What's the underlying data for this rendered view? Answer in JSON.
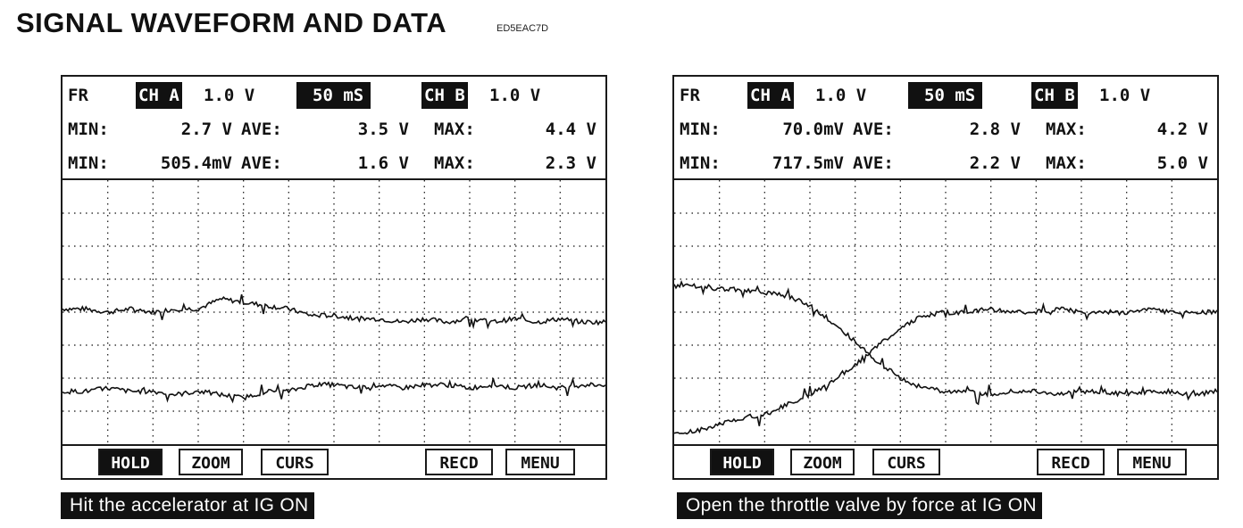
{
  "title": "SIGNAL WAVEFORM AND DATA",
  "doc_code": "ED5EAC7D",
  "colors": {
    "screen_background": "#ffffff",
    "trace": "#111111",
    "grid": "#111111",
    "inverse_label_background": "#111111",
    "inverse_label_text": "#ffffff"
  },
  "panels": [
    {
      "mode": "FR",
      "channel_a": {
        "label": "CH A",
        "scale": "1.0 V"
      },
      "timebase": "50 mS",
      "channel_b": {
        "label": "CH B",
        "scale": "1.0 V"
      },
      "stats_a": {
        "min_label": "MIN:",
        "min": "2.7 V",
        "ave_label": "AVE:",
        "ave": "3.5 V",
        "max_label": "MAX:",
        "max": "4.4 V"
      },
      "stats_b": {
        "min_label": "MIN:",
        "min": "505.4mV",
        "ave_label": "AVE:",
        "ave": "1.6 V",
        "max_label": "MAX:",
        "max": "2.3 V"
      },
      "softkeys": {
        "hold": "HOLD",
        "zoom": "ZOOM",
        "curs": "CURS",
        "recd": "RECD",
        "menu": "MENU",
        "active": "hold"
      },
      "caption": "Hit the accelerator at IG ON",
      "waveform": {
        "grid_divisions": {
          "x": 12,
          "y": 8
        },
        "trace_a": [
          4.1,
          4.1,
          4.0,
          4.1,
          4.0,
          4.1,
          4.1,
          4.4,
          4.3,
          4.2,
          4.1,
          3.9,
          3.9,
          3.8,
          3.8,
          3.7,
          3.8,
          3.7,
          3.8,
          3.7,
          3.8,
          3.7,
          3.8,
          3.7,
          3.7
        ],
        "trace_b": [
          1.6,
          1.6,
          1.7,
          1.6,
          1.6,
          1.5,
          1.6,
          1.5,
          1.4,
          1.6,
          1.6,
          1.8,
          1.8,
          1.7,
          1.8,
          1.7,
          1.8,
          1.8,
          1.7,
          1.8,
          1.7,
          1.8,
          1.7,
          1.8,
          1.8
        ]
      }
    },
    {
      "mode": "FR",
      "channel_a": {
        "label": "CH A",
        "scale": "1.0 V"
      },
      "timebase": "50 mS",
      "channel_b": {
        "label": "CH B",
        "scale": "1.0 V"
      },
      "stats_a": {
        "min_label": "MIN:",
        "min": "70.0mV",
        "ave_label": "AVE:",
        "ave": "2.8 V",
        "max_label": "MAX:",
        "max": "4.2 V"
      },
      "stats_b": {
        "min_label": "MIN:",
        "min": "717.5mV",
        "ave_label": "AVE:",
        "ave": "2.2 V",
        "max_label": "MAX:",
        "max": "5.0 V"
      },
      "softkeys": {
        "hold": "HOLD",
        "zoom": "ZOOM",
        "curs": "CURS",
        "recd": "RECD",
        "menu": "MENU",
        "active": "hold"
      },
      "caption": "Open the throttle valve by force at IG ON",
      "waveform": {
        "grid_divisions": {
          "x": 12,
          "y": 8
        },
        "trace_a": [
          0.3,
          0.4,
          0.6,
          0.8,
          0.9,
          1.2,
          1.5,
          1.9,
          2.4,
          3.0,
          3.5,
          3.9,
          4.0,
          4.0,
          4.1,
          4.0,
          4.0,
          4.1,
          4.0,
          4.0,
          4.0,
          4.1,
          4.0,
          4.0,
          4.0
        ],
        "trace_b": [
          4.8,
          4.8,
          4.7,
          4.7,
          4.6,
          4.5,
          4.2,
          3.7,
          3.1,
          2.5,
          2.0,
          1.7,
          1.6,
          1.6,
          1.5,
          1.6,
          1.6,
          1.5,
          1.6,
          1.6,
          1.5,
          1.6,
          1.6,
          1.5,
          1.6
        ]
      }
    }
  ]
}
